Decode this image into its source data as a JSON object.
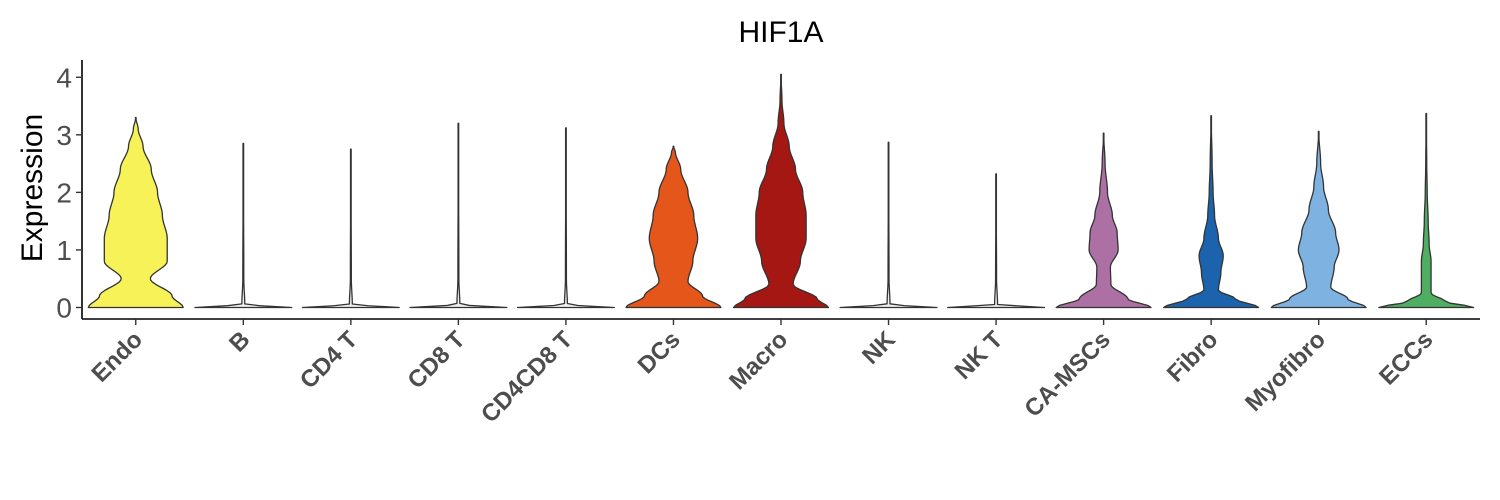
{
  "chart_data": {
    "type": "violin",
    "title": "HIF1A",
    "xlabel": "",
    "ylabel": "Expression",
    "ylim": [
      -0.2,
      4.3
    ],
    "yticks": [
      "0",
      "1",
      "2",
      "3",
      "4"
    ],
    "grid": false,
    "legend": "none",
    "categories": [
      "Endo",
      "B",
      "CD4 T",
      "CD8 T",
      "CD4CD8 T",
      "DCs",
      "Macro",
      "NK",
      "NK T",
      "CA-MSCs",
      "Fibro",
      "Myofibro",
      "ECCs"
    ],
    "colors": [
      "#f7f257",
      "#f0f0f0",
      "#f0f0f0",
      "#f0f0f0",
      "#f0f0f0",
      "#e5561a",
      "#a51713",
      "#f0f0f0",
      "#f0f0f0",
      "#ad70a4",
      "#1c63ad",
      "#7eb2e1",
      "#4fae61"
    ],
    "max_values": [
      3.3,
      2.85,
      2.75,
      3.2,
      3.12,
      2.8,
      4.05,
      2.87,
      2.32,
      3.03,
      3.33,
      3.06,
      3.37
    ],
    "density_profiles": [
      [
        [
          0,
          0.98
        ],
        [
          0.2,
          0.75
        ],
        [
          0.5,
          0.3
        ],
        [
          0.8,
          0.65
        ],
        [
          1.2,
          0.65
        ],
        [
          1.6,
          0.55
        ],
        [
          2.0,
          0.45
        ],
        [
          2.4,
          0.32
        ],
        [
          2.8,
          0.15
        ],
        [
          3.1,
          0.05
        ],
        [
          3.3,
          0
        ]
      ],
      [
        [
          0,
          1
        ],
        [
          0.05,
          0.03
        ],
        [
          0.5,
          0.01
        ],
        [
          2.85,
          0
        ]
      ],
      [
        [
          0,
          1
        ],
        [
          0.05,
          0.03
        ],
        [
          0.5,
          0.01
        ],
        [
          2.75,
          0
        ]
      ],
      [
        [
          0,
          1
        ],
        [
          0.05,
          0.03
        ],
        [
          0.5,
          0.01
        ],
        [
          3.2,
          0
        ]
      ],
      [
        [
          0,
          1
        ],
        [
          0.05,
          0.03
        ],
        [
          0.5,
          0.01
        ],
        [
          3.12,
          0
        ]
      ],
      [
        [
          0,
          0.98
        ],
        [
          0.2,
          0.6
        ],
        [
          0.45,
          0.3
        ],
        [
          0.8,
          0.4
        ],
        [
          1.2,
          0.5
        ],
        [
          1.6,
          0.42
        ],
        [
          2.0,
          0.3
        ],
        [
          2.4,
          0.15
        ],
        [
          2.7,
          0.04
        ],
        [
          2.8,
          0
        ]
      ],
      [
        [
          0,
          0.98
        ],
        [
          0.15,
          0.75
        ],
        [
          0.4,
          0.25
        ],
        [
          0.8,
          0.4
        ],
        [
          1.2,
          0.52
        ],
        [
          1.6,
          0.52
        ],
        [
          2.0,
          0.45
        ],
        [
          2.4,
          0.3
        ],
        [
          2.8,
          0.17
        ],
        [
          3.2,
          0.06
        ],
        [
          3.6,
          0.02
        ],
        [
          4.05,
          0
        ]
      ],
      [
        [
          0,
          1
        ],
        [
          0.05,
          0.03
        ],
        [
          0.5,
          0.01
        ],
        [
          2.87,
          0
        ]
      ],
      [
        [
          0,
          1
        ],
        [
          0.05,
          0.03
        ],
        [
          0.5,
          0.01
        ],
        [
          2.32,
          0
        ]
      ],
      [
        [
          0,
          0.98
        ],
        [
          0.15,
          0.5
        ],
        [
          0.4,
          0.15
        ],
        [
          0.7,
          0.14
        ],
        [
          1.0,
          0.3
        ],
        [
          1.3,
          0.28
        ],
        [
          1.6,
          0.18
        ],
        [
          2.0,
          0.08
        ],
        [
          2.5,
          0.03
        ],
        [
          3.03,
          0
        ]
      ],
      [
        [
          0,
          0.98
        ],
        [
          0.15,
          0.5
        ],
        [
          0.3,
          0.15
        ],
        [
          0.6,
          0.2
        ],
        [
          0.9,
          0.25
        ],
        [
          1.2,
          0.15
        ],
        [
          1.6,
          0.07
        ],
        [
          2.0,
          0.04
        ],
        [
          2.5,
          0.02
        ],
        [
          3.33,
          0
        ]
      ],
      [
        [
          0,
          0.98
        ],
        [
          0.15,
          0.6
        ],
        [
          0.35,
          0.25
        ],
        [
          0.7,
          0.32
        ],
        [
          1.0,
          0.42
        ],
        [
          1.3,
          0.35
        ],
        [
          1.7,
          0.2
        ],
        [
          2.1,
          0.1
        ],
        [
          2.5,
          0.04
        ],
        [
          3.06,
          0
        ]
      ],
      [
        [
          0,
          0.98
        ],
        [
          0.1,
          0.4
        ],
        [
          0.25,
          0.1
        ],
        [
          0.5,
          0.1
        ],
        [
          0.8,
          0.1
        ],
        [
          1.1,
          0.06
        ],
        [
          1.5,
          0.04
        ],
        [
          2.0,
          0.02
        ],
        [
          2.5,
          0.01
        ],
        [
          3.37,
          0
        ]
      ]
    ]
  }
}
